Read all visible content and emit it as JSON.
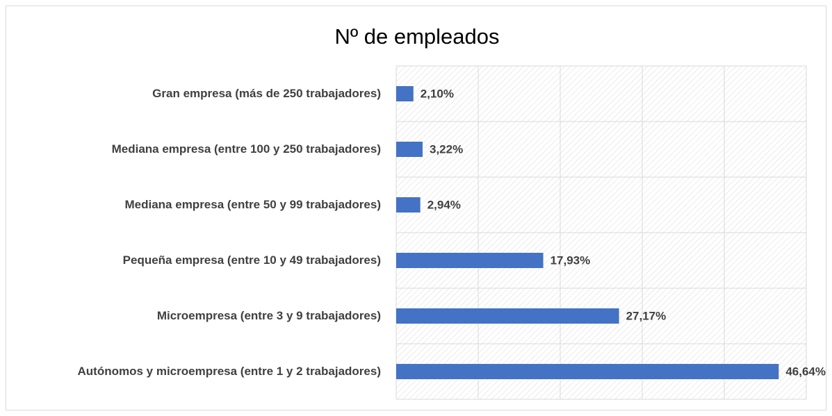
{
  "chart_data": {
    "type": "hbar",
    "title": "Nº de empleados",
    "categories": [
      "Gran empresa (más de 250 trabajadores)",
      "Mediana empresa (entre 100 y 250 trabajadores)",
      "Mediana empresa (entre 50 y 99 trabajadores)",
      "Pequeña empresa (entre 10 y 49 trabajadores)",
      "Microempresa (entre 3 y 9 trabajadores)",
      "Autónomos y microempresa (entre 1 y 2 trabajadores)"
    ],
    "values": [
      2.1,
      3.22,
      2.94,
      17.93,
      27.17,
      46.64
    ],
    "value_labels": [
      "2,10%",
      "3,22%",
      "2,94%",
      "17,93%",
      "27,17%",
      "46,64%"
    ],
    "color": "#4472c4",
    "xlim": [
      0,
      50
    ],
    "xticks": [
      0,
      10,
      20,
      30,
      40,
      50
    ],
    "grid": true
  }
}
